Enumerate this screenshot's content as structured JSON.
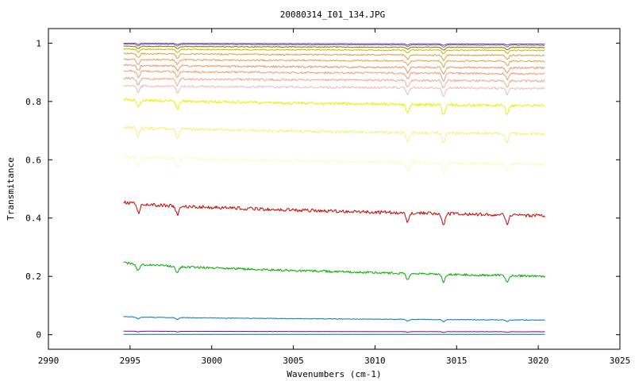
{
  "chart_data": {
    "type": "line",
    "title": "20080314_I01_134.JPG",
    "xlabel": "Wavenumbers (cm-1)",
    "ylabel": "Transmitance",
    "xlim": [
      2990,
      3025
    ],
    "ylim": [
      -0.05,
      1.05
    ],
    "x_ticks": [
      2990,
      2995,
      3000,
      3005,
      3010,
      3015,
      3020,
      3025
    ],
    "x_tick_labels": [
      "2990",
      "2995",
      "3000",
      "3005",
      "3010",
      "3015",
      "3020",
      "3025"
    ],
    "y_ticks": [
      0,
      0.2,
      0.4,
      0.6,
      0.8,
      1
    ],
    "y_tick_labels": [
      "0",
      "0.2",
      "0.4",
      "0.6",
      "0.8",
      "1"
    ],
    "grid": false,
    "legend": "none",
    "x_range": [
      2994.6,
      3020.4
    ],
    "absorption_dips_x": [
      2995.5,
      2997.9,
      3012.0,
      3014.2,
      3018.1
    ],
    "series": [
      {
        "color": "#7b2fd0",
        "y_start": 1.0,
        "y_end": 0.997,
        "dip_depth": 0.004
      },
      {
        "color": "#777777",
        "y_start": 0.997,
        "y_end": 0.993,
        "dip_depth": 0.006
      },
      {
        "color": "#7a7a00",
        "y_start": 0.99,
        "y_end": 0.985,
        "dip_depth": 0.008
      },
      {
        "color": "#c9b400",
        "y_start": 0.98,
        "y_end": 0.975,
        "dip_depth": 0.01
      },
      {
        "color": "#d8a040",
        "y_start": 0.965,
        "y_end": 0.958,
        "dip_depth": 0.014
      },
      {
        "color": "#e6a050",
        "y_start": 0.945,
        "y_end": 0.938,
        "dip_depth": 0.016
      },
      {
        "color": "#e8956a",
        "y_start": 0.925,
        "y_end": 0.915,
        "dip_depth": 0.018
      },
      {
        "color": "#eca07a",
        "y_start": 0.905,
        "y_end": 0.895,
        "dip_depth": 0.02
      },
      {
        "color": "#f0a890",
        "y_start": 0.88,
        "y_end": 0.87,
        "dip_depth": 0.022
      },
      {
        "color": "#f2b8b8",
        "y_start": 0.855,
        "y_end": 0.845,
        "dip_depth": 0.022
      },
      {
        "color": "#eeee00",
        "y_start": 0.808,
        "y_end": 0.785,
        "dip_depth": 0.028
      },
      {
        "color": "#f4f080",
        "y_start": 0.712,
        "y_end": 0.688,
        "dip_depth": 0.03
      },
      {
        "color": "#fbfbc0",
        "y_start": 0.612,
        "y_end": 0.585,
        "dip_depth": 0.03
      },
      {
        "color": "#cc0000",
        "y_start": 0.455,
        "y_end": 0.408,
        "dip_depth": 0.032
      },
      {
        "color": "#00aa00",
        "y_start": 0.248,
        "y_end": 0.2,
        "dip_depth": 0.022
      },
      {
        "color": "#0077bb",
        "y_start": 0.062,
        "y_end": 0.05,
        "dip_depth": 0.006
      },
      {
        "color": "#8800aa",
        "y_start": 0.012,
        "y_end": 0.01,
        "dip_depth": 0.002
      },
      {
        "color": "#007777",
        "y_start": 0.001,
        "y_end": 0.001,
        "dip_depth": 0.0
      }
    ]
  }
}
